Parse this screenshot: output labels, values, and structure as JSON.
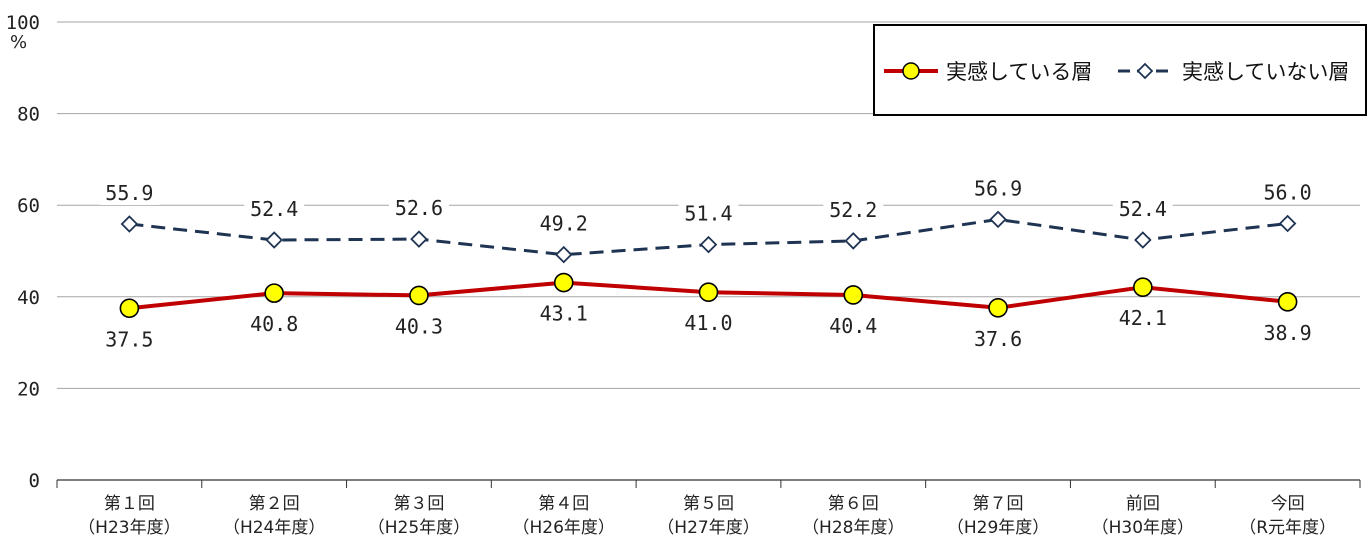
{
  "chart_data": {
    "type": "line",
    "ylabel": "%",
    "ylim": [
      0,
      100
    ],
    "yticks": [
      0,
      20,
      40,
      60,
      80,
      100
    ],
    "grid": true,
    "legend_position": "top-right",
    "categories": [
      {
        "line1": "第１回",
        "line2": "（H23年度）"
      },
      {
        "line1": "第２回",
        "line2": "（H24年度）"
      },
      {
        "line1": "第３回",
        "line2": "（H25年度）"
      },
      {
        "line1": "第４回",
        "line2": "（H26年度）"
      },
      {
        "line1": "第５回",
        "line2": "（H27年度）"
      },
      {
        "line1": "第６回",
        "line2": "（H28年度）"
      },
      {
        "line1": "第７回",
        "line2": "（H29年度）"
      },
      {
        "line1": "前回",
        "line2": "（H30年度）"
      },
      {
        "line1": "今回",
        "line2": "（R元年度）"
      }
    ],
    "series": [
      {
        "name": "実感している層",
        "color": "#c00000",
        "marker": "circle",
        "marker_fill": "#ffff00",
        "line_style": "solid",
        "values": [
          37.5,
          40.8,
          40.3,
          43.1,
          41.0,
          40.4,
          37.6,
          42.1,
          38.9
        ],
        "labels": [
          "37.5",
          "40.8",
          "40.3",
          "43.1",
          "41.0",
          "40.4",
          "37.6",
          "42.1",
          "38.9"
        ]
      },
      {
        "name": "実感していない層",
        "color": "#1f3453",
        "marker": "diamond",
        "marker_fill": "#ffffff",
        "line_style": "dashed",
        "values": [
          55.9,
          52.4,
          52.6,
          49.2,
          51.4,
          52.2,
          56.9,
          52.4,
          56.0
        ],
        "labels": [
          "55.9",
          "52.4",
          "52.6",
          "49.2",
          "51.4",
          "52.2",
          "56.9",
          "52.4",
          "56.0"
        ]
      }
    ]
  }
}
